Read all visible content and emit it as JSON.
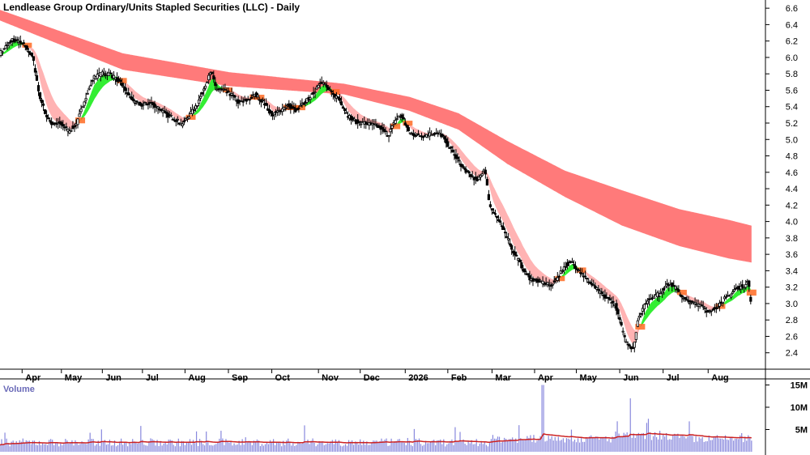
{
  "chart_data": {
    "title": "Lendlease Group Ordinary/Units Stapled Securities (LLC) - Daily",
    "type": "candlestick",
    "x_axis": {
      "tick_labels": [
        "Apr",
        "May",
        "Jun",
        "Jul",
        "Aug",
        "Sep",
        "Oct",
        "Nov",
        "Dec",
        "2026",
        "Feb",
        "Mar",
        "Apr",
        "May",
        "Jun",
        "Jul",
        "Aug"
      ],
      "tick_days": [
        27,
        75,
        125,
        174,
        226,
        279,
        332,
        389,
        440,
        495,
        547,
        601,
        653,
        704,
        757,
        810,
        865
      ]
    },
    "y_axis": {
      "ylim": [
        2.2,
        6.7
      ],
      "ticks": [
        2.4,
        2.6,
        2.8,
        3.0,
        3.2,
        3.4,
        3.6,
        3.8,
        4.0,
        4.2,
        4.4,
        4.6,
        4.8,
        5.0,
        5.2,
        5.4,
        5.6,
        5.8,
        6.0,
        6.2,
        6.4,
        6.6
      ]
    },
    "volume_panel": {
      "label": "Volume",
      "ticks": [
        {
          "value": 5,
          "label": "5M"
        },
        {
          "value": 10,
          "label": "10M"
        },
        {
          "value": 15,
          "label": "15M"
        }
      ],
      "ylim": [
        0,
        16
      ],
      "avg_color": "#cc2222",
      "bar_color": "#8888dd"
    },
    "price_keypoints": [
      [
        0,
        6.05
      ],
      [
        15,
        6.22
      ],
      [
        30,
        6.15
      ],
      [
        40,
        6.0
      ],
      [
        48,
        5.55
      ],
      [
        56,
        5.3
      ],
      [
        64,
        5.18
      ],
      [
        74,
        5.2
      ],
      [
        84,
        5.1
      ],
      [
        94,
        5.2
      ],
      [
        104,
        5.5
      ],
      [
        114,
        5.75
      ],
      [
        124,
        5.8
      ],
      [
        134,
        5.8
      ],
      [
        144,
        5.72
      ],
      [
        150,
        5.65
      ],
      [
        156,
        5.55
      ],
      [
        165,
        5.45
      ],
      [
        174,
        5.42
      ],
      [
        184,
        5.45
      ],
      [
        194,
        5.38
      ],
      [
        204,
        5.3
      ],
      [
        214,
        5.25
      ],
      [
        222,
        5.18
      ],
      [
        232,
        5.3
      ],
      [
        242,
        5.45
      ],
      [
        252,
        5.7
      ],
      [
        258,
        5.82
      ],
      [
        264,
        5.62
      ],
      [
        272,
        5.6
      ],
      [
        282,
        5.55
      ],
      [
        292,
        5.45
      ],
      [
        302,
        5.48
      ],
      [
        312,
        5.55
      ],
      [
        322,
        5.45
      ],
      [
        332,
        5.3
      ],
      [
        342,
        5.35
      ],
      [
        352,
        5.42
      ],
      [
        362,
        5.35
      ],
      [
        372,
        5.45
      ],
      [
        382,
        5.55
      ],
      [
        392,
        5.72
      ],
      [
        398,
        5.65
      ],
      [
        406,
        5.55
      ],
      [
        414,
        5.5
      ],
      [
        424,
        5.3
      ],
      [
        434,
        5.22
      ],
      [
        444,
        5.2
      ],
      [
        454,
        5.18
      ],
      [
        464,
        5.15
      ],
      [
        474,
        5.05
      ],
      [
        484,
        5.25
      ],
      [
        490,
        5.3
      ],
      [
        500,
        5.08
      ],
      [
        510,
        5.05
      ],
      [
        520,
        5.05
      ],
      [
        530,
        5.08
      ],
      [
        540,
        5.05
      ],
      [
        546,
        4.95
      ],
      [
        556,
        4.8
      ],
      [
        566,
        4.65
      ],
      [
        576,
        4.55
      ],
      [
        584,
        4.5
      ],
      [
        592,
        4.65
      ],
      [
        598,
        4.2
      ],
      [
        604,
        4.1
      ],
      [
        612,
        3.95
      ],
      [
        620,
        3.8
      ],
      [
        626,
        3.65
      ],
      [
        632,
        3.55
      ],
      [
        640,
        3.4
      ],
      [
        648,
        3.3
      ],
      [
        656,
        3.28
      ],
      [
        664,
        3.25
      ],
      [
        672,
        3.22
      ],
      [
        680,
        3.3
      ],
      [
        686,
        3.4
      ],
      [
        692,
        3.48
      ],
      [
        698,
        3.5
      ],
      [
        706,
        3.42
      ],
      [
        716,
        3.3
      ],
      [
        726,
        3.2
      ],
      [
        736,
        3.1
      ],
      [
        744,
        3.05
      ],
      [
        752,
        2.98
      ],
      [
        758,
        2.75
      ],
      [
        764,
        2.55
      ],
      [
        770,
        2.48
      ],
      [
        774,
        2.45
      ],
      [
        780,
        2.85
      ],
      [
        786,
        2.95
      ],
      [
        792,
        3.05
      ],
      [
        800,
        3.1
      ],
      [
        808,
        3.12
      ],
      [
        814,
        3.25
      ],
      [
        822,
        3.22
      ],
      [
        832,
        3.1
      ],
      [
        840,
        3.02
      ],
      [
        848,
        3.0
      ],
      [
        858,
        2.98
      ],
      [
        866,
        2.88
      ],
      [
        874,
        2.95
      ],
      [
        884,
        3.05
      ],
      [
        892,
        3.1
      ],
      [
        898,
        3.18
      ],
      [
        904,
        3.2
      ],
      [
        910,
        3.22
      ],
      [
        914,
        3.28
      ],
      [
        918,
        2.92
      ]
    ],
    "ribbon_upper_keypoints": [
      [
        0,
        6.58
      ],
      [
        150,
        6.05
      ],
      [
        280,
        5.82
      ],
      [
        420,
        5.68
      ],
      [
        500,
        5.52
      ],
      [
        560,
        5.32
      ],
      [
        620,
        4.98
      ],
      [
        690,
        4.62
      ],
      [
        760,
        4.38
      ],
      [
        830,
        4.15
      ],
      [
        890,
        4.02
      ],
      [
        918,
        3.95
      ]
    ],
    "ribbon_lower_keypoints": [
      [
        0,
        6.45
      ],
      [
        150,
        5.85
      ],
      [
        280,
        5.65
      ],
      [
        420,
        5.55
      ],
      [
        500,
        5.35
      ],
      [
        560,
        5.12
      ],
      [
        620,
        4.7
      ],
      [
        690,
        4.3
      ],
      [
        760,
        3.95
      ],
      [
        830,
        3.7
      ],
      [
        890,
        3.55
      ],
      [
        918,
        3.5
      ]
    ],
    "colors": {
      "long_ribbon": "#ff7a7a",
      "short_ribbon": "#ffb3b3",
      "bull_segment": "#33ee33",
      "cross_segment": "#ff6a22",
      "candle": "#000000",
      "grid_text": "#000000"
    }
  }
}
